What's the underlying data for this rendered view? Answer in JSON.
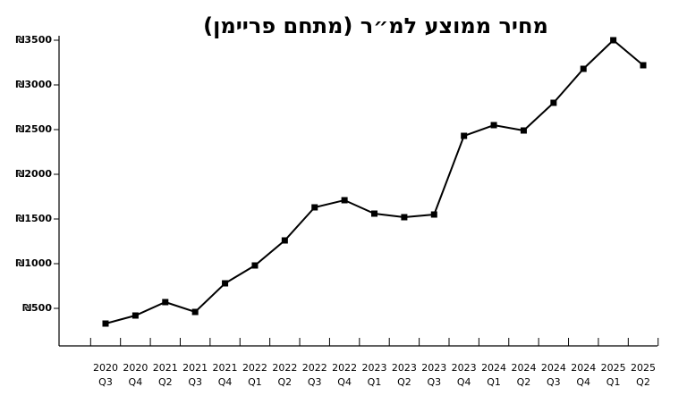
{
  "chart_data": {
    "type": "line",
    "title": "מחיר ממוצע למ״ר (מתחם פריימן)",
    "categories": [
      [
        "2020",
        "Q3"
      ],
      [
        "2020",
        "Q4"
      ],
      [
        "2021",
        "Q2"
      ],
      [
        "2021",
        "Q3"
      ],
      [
        "2021",
        "Q4"
      ],
      [
        "2022",
        "Q1"
      ],
      [
        "2022",
        "Q2"
      ],
      [
        "2022",
        "Q3"
      ],
      [
        "2022",
        "Q4"
      ],
      [
        "2023",
        "Q1"
      ],
      [
        "2023",
        "Q2"
      ],
      [
        "2023",
        "Q3"
      ],
      [
        "2023",
        "Q4"
      ],
      [
        "2024",
        "Q1"
      ],
      [
        "2024",
        "Q2"
      ],
      [
        "2024",
        "Q3"
      ],
      [
        "2024",
        "Q4"
      ],
      [
        "2025",
        "Q1"
      ],
      [
        "2025",
        "Q2"
      ]
    ],
    "values": [
      330,
      420,
      570,
      460,
      780,
      980,
      1260,
      1630,
      1710,
      1560,
      1520,
      1550,
      2430,
      2550,
      2490,
      2800,
      3180,
      3500,
      3220
    ],
    "color": "#000000",
    "ylim": [
      80,
      3550
    ],
    "yticks": [
      {
        "value": 500,
        "label": "₪500"
      },
      {
        "value": 1000,
        "label": "₪1000"
      },
      {
        "value": 1500,
        "label": "₪1500"
      },
      {
        "value": 2000,
        "label": "₪2000"
      },
      {
        "value": 2500,
        "label": "₪2500"
      },
      {
        "value": 3000,
        "label": "₪3000"
      },
      {
        "value": 3500,
        "label": "₪3500"
      }
    ]
  }
}
